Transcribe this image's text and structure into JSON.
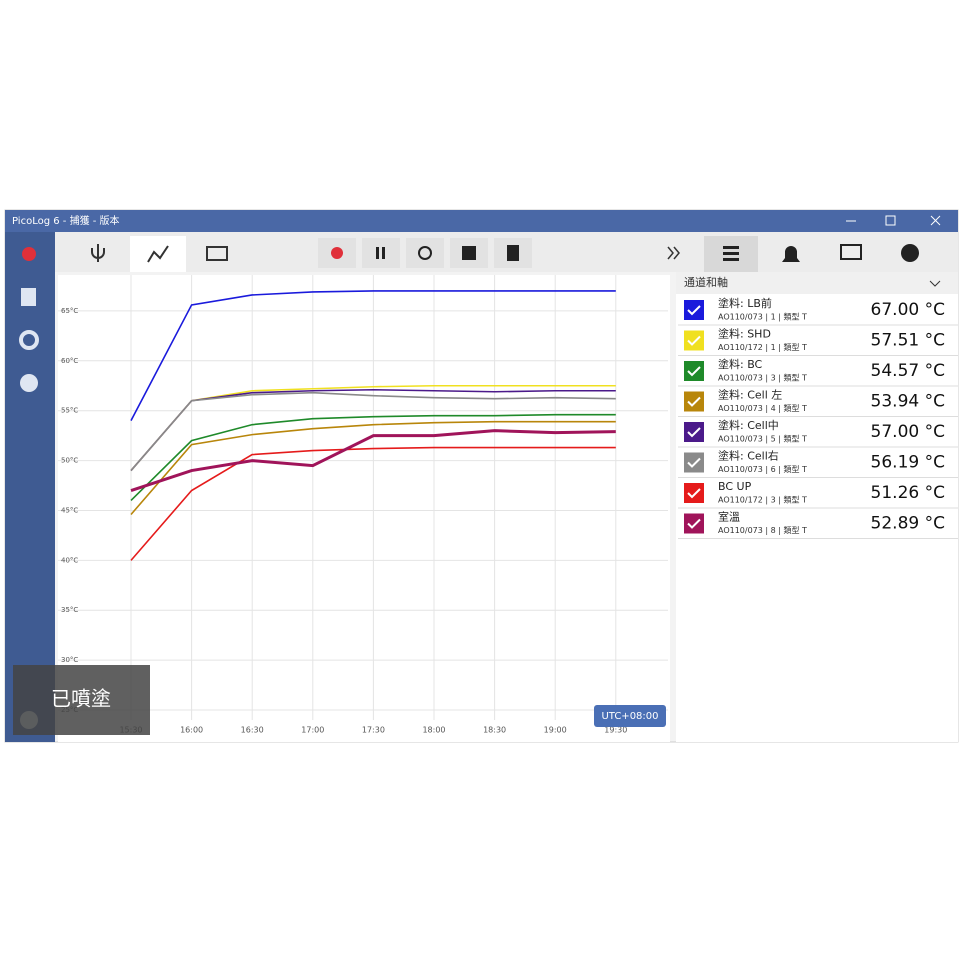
{
  "window": {
    "title": "PicoLog 6 - 捕獲 - 版本"
  },
  "panel": {
    "title": "通道和軸"
  },
  "channels": [
    {
      "device": "AO110/073 | 1 | 類型 T",
      "reading": "67.00 °C"
    },
    {
      "device": "AO110/172 | 1 | 類型 T",
      "reading": "57.51 °C"
    },
    {
      "device": "AO110/073 | 3 | 類型 T",
      "reading": "54.57 °C"
    },
    {
      "device": "AO110/073 | 4 | 類型 T",
      "reading": "53.94 °C"
    },
    {
      "device": "AO110/073 | 5 | 類型 T",
      "reading": "57.00 °C"
    },
    {
      "device": "AO110/073 | 6 | 類型 T",
      "reading": "56.19 °C"
    },
    {
      "device": "AO110/172 | 3 | 類型 T",
      "reading": "51.26 °C"
    },
    {
      "device": "AO110/073 | 8 | 類型 T",
      "reading": "52.89 °C"
    }
  ],
  "overlay": {
    "caption": "已噴塗",
    "timezone": "UTC+08:00"
  },
  "chart_data": {
    "type": "line",
    "categories": [
      "15:30",
      "16:00",
      "16:30",
      "17:00",
      "17:30",
      "18:00",
      "18:30",
      "19:00",
      "19:30"
    ],
    "series": [
      {
        "name": "塗料: LB前",
        "color": "#1a1adc",
        "values": [
          54,
          65.6,
          66.6,
          66.9,
          67,
          67,
          67,
          67,
          67
        ]
      },
      {
        "name": "塗料: SHD",
        "color": "#f0e020",
        "values": [
          49,
          56,
          57,
          57.2,
          57.4,
          57.5,
          57.5,
          57.5,
          57.5
        ]
      },
      {
        "name": "塗料: BC",
        "color": "#1f8a2a",
        "values": [
          46,
          52,
          53.6,
          54.2,
          54.4,
          54.5,
          54.5,
          54.6,
          54.6
        ]
      },
      {
        "name": "塗料: Cell 左",
        "color": "#b8860b",
        "values": [
          44.6,
          51.6,
          52.6,
          53.2,
          53.6,
          53.8,
          53.9,
          53.9,
          53.9
        ]
      },
      {
        "name": "塗料: Cell中",
        "color": "#4b1a8a",
        "values": [
          49,
          56,
          56.8,
          57,
          57.1,
          57,
          56.9,
          57,
          57
        ]
      },
      {
        "name": "塗料: Cell右",
        "color": "#8a8a8a",
        "values": [
          49,
          56,
          56.6,
          56.8,
          56.5,
          56.3,
          56.2,
          56.3,
          56.2
        ]
      },
      {
        "name": "BC UP",
        "color": "#e51b1b",
        "values": [
          40,
          47,
          50.6,
          51,
          51.2,
          51.3,
          51.3,
          51.3,
          51.3
        ]
      },
      {
        "name": "室溫",
        "color": "#a0145a",
        "values": [
          47,
          49,
          50,
          49.5,
          52.5,
          52.5,
          53,
          52.8,
          52.9
        ]
      }
    ],
    "ylim": [
      24,
      68.6
    ],
    "yticks": [
      {
        "value": 25,
        "label": "25°C"
      },
      {
        "value": 30,
        "label": "30°C"
      },
      {
        "value": 35,
        "label": "35°C"
      },
      {
        "value": 40,
        "label": "40°C"
      },
      {
        "value": 45,
        "label": "45°C"
      },
      {
        "value": 50,
        "label": "50°C"
      },
      {
        "value": 55,
        "label": "55°C"
      },
      {
        "value": 60,
        "label": "60°C"
      },
      {
        "value": 65,
        "label": "65°C"
      }
    ],
    "grid": true
  }
}
